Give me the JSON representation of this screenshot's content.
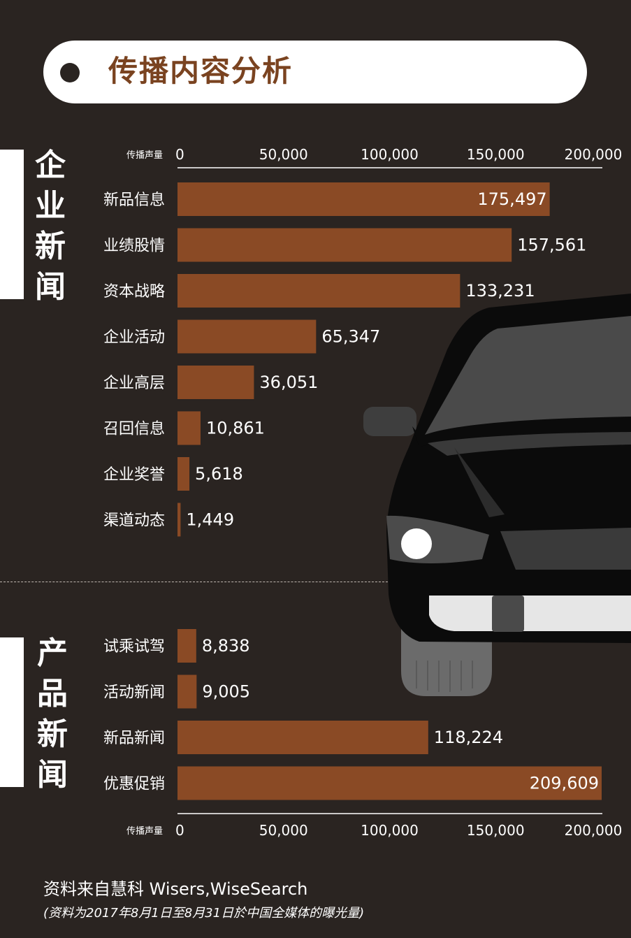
{
  "header": {
    "title": "传播内容分析"
  },
  "sections": {
    "enterprise": {
      "label": [
        "企",
        "业",
        "新",
        "闻"
      ]
    },
    "product": {
      "label": [
        "产",
        "品",
        "新",
        "闻"
      ]
    }
  },
  "footer": {
    "source": "资料来自慧科 Wisers,WiseSearch",
    "note": "(资料为2017年8月1日至8月31日於中国全媒体的曝光量)"
  },
  "colors": {
    "background": "#2a2421",
    "bar": "#8a4a25",
    "title": "#7a4320"
  },
  "chart_data": [
    {
      "type": "bar",
      "orientation": "horizontal",
      "xlabel": "传播声量",
      "xlim": [
        0,
        200000
      ],
      "ticks": [
        "0",
        "50,000",
        "100,000",
        "150,000",
        "200,000"
      ],
      "axis_position": "top",
      "categories": [
        "新品信息",
        "业绩股情",
        "资本战略",
        "企业活动",
        "企业高层",
        "召回信息",
        "企业奖誉",
        "渠道动态"
      ],
      "values": [
        175497,
        157561,
        133231,
        65347,
        36051,
        10861,
        5618,
        1449
      ],
      "value_labels": [
        "175,497",
        "157,561",
        "133,231",
        "65,347",
        "36,051",
        "10,861",
        "5,618",
        "1,449"
      ]
    },
    {
      "type": "bar",
      "orientation": "horizontal",
      "xlabel": "传播声量",
      "xlim": [
        0,
        200000
      ],
      "ticks": [
        "0",
        "50,000",
        "100,000",
        "150,000",
        "200,000"
      ],
      "axis_position": "bottom",
      "categories": [
        "试乘试驾",
        "活动新闻",
        "新品新闻",
        "优惠促销"
      ],
      "values": [
        8838,
        9005,
        118224,
        209609
      ],
      "value_labels": [
        "8,838",
        "9,005",
        "118,224",
        "209,609"
      ]
    }
  ]
}
